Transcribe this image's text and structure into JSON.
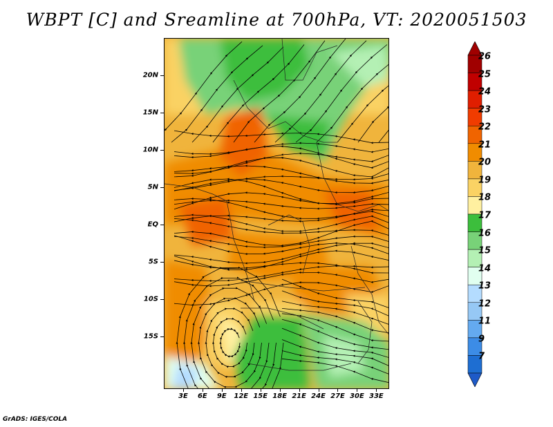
{
  "title": "WBPT [C] and Sreamline at 700hPa, VT: 2020051503",
  "footer": "GrADS: IGES/COLA",
  "map": {
    "lat_range": [
      -22,
      25
    ],
    "lon_range": [
      0,
      35
    ],
    "lat_labels": [
      {
        "lat": 20,
        "label": "20N"
      },
      {
        "lat": 15,
        "label": "15N"
      },
      {
        "lat": 10,
        "label": "10N"
      },
      {
        "lat": 5,
        "label": "5N"
      },
      {
        "lat": 0,
        "label": "EQ"
      },
      {
        "lat": -5,
        "label": "5S"
      },
      {
        "lat": -10,
        "label": "10S"
      },
      {
        "lat": -15,
        "label": "15S"
      }
    ],
    "lon_labels": [
      {
        "lon": 3,
        "label": "3E"
      },
      {
        "lon": 6,
        "label": "6E"
      },
      {
        "lon": 9,
        "label": "9E"
      },
      {
        "lon": 12,
        "label": "12E"
      },
      {
        "lon": 15,
        "label": "15E"
      },
      {
        "lon": 18,
        "label": "18E"
      },
      {
        "lon": 21,
        "label": "21E"
      },
      {
        "lon": 24,
        "label": "24E"
      },
      {
        "lon": 27,
        "label": "27E"
      },
      {
        "lon": 30,
        "label": "30E"
      },
      {
        "lon": 33,
        "label": "33E"
      }
    ]
  },
  "colorbar": {
    "levels": [
      {
        "label": "26",
        "color": "#a00000"
      },
      {
        "label": "25",
        "color": "#c00000"
      },
      {
        "label": "24",
        "color": "#e01e00"
      },
      {
        "label": "23",
        "color": "#f03c00"
      },
      {
        "label": "22",
        "color": "#f06400"
      },
      {
        "label": "21",
        "color": "#f08c00"
      },
      {
        "label": "20",
        "color": "#f0b43c"
      },
      {
        "label": "19",
        "color": "#fad264"
      },
      {
        "label": "18",
        "color": "#fff0a0"
      },
      {
        "label": "17",
        "color": "#3cbe3c"
      },
      {
        "label": "16",
        "color": "#78d278"
      },
      {
        "label": "15",
        "color": "#b4f0b4"
      },
      {
        "label": "14",
        "color": "#e1fff0"
      },
      {
        "label": "13",
        "color": "#b4dcff"
      },
      {
        "label": "12",
        "color": "#96c8f5"
      },
      {
        "label": "11",
        "color": "#64aaf0"
      },
      {
        "label": "9",
        "color": "#3c8ce6"
      },
      {
        "label": "7",
        "color": "#1e6ed2"
      }
    ],
    "bottom_color": "#1e5ac8"
  }
}
